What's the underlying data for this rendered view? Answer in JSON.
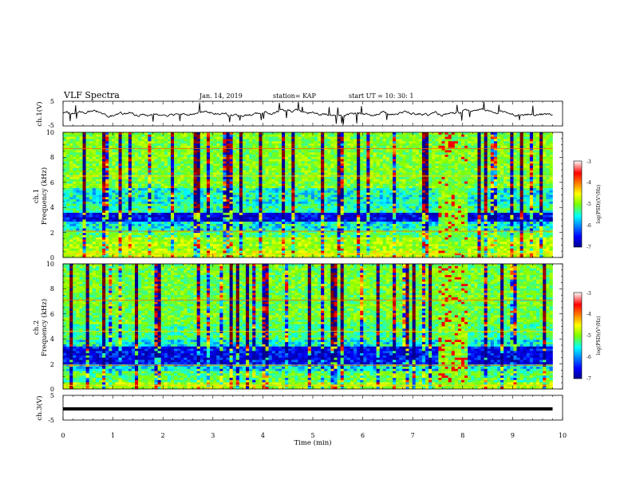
{
  "header": {
    "title": "VLF Spectra",
    "date": "Jan. 14, 2019",
    "station": "station= KAP",
    "start": "start  UT =   10: 30: 1"
  },
  "chart_data": [
    {
      "type": "line",
      "name": "ch1-waveform",
      "ylabel": "ch.1(V)",
      "ylim": [
        -5,
        5
      ],
      "yticks": [
        "5",
        "-5"
      ],
      "xlim": [
        0,
        10
      ]
    },
    {
      "type": "heatmap",
      "name": "ch1-spectrogram",
      "ylabel_line1": "ch.1",
      "ylabel_line2": "Frequency (kHz)",
      "xlim": [
        0,
        10
      ],
      "ylim": [
        0,
        10
      ],
      "yticks": [
        "0",
        "2",
        "4",
        "6",
        "8",
        "10"
      ],
      "data_end_min": 9.8,
      "colorbar": {
        "label": "log(PSD)(V²/Hz)",
        "range": [
          -7,
          -3
        ],
        "ticks": [
          "-3",
          "-4",
          "-5",
          "-6",
          "-7"
        ]
      }
    },
    {
      "type": "heatmap",
      "name": "ch2-spectrogram",
      "ylabel_line1": "ch.2",
      "ylabel_line2": "Frequency (kHz)",
      "xlim": [
        0,
        10
      ],
      "ylim": [
        0,
        10
      ],
      "yticks": [
        "0",
        "2",
        "4",
        "6",
        "8",
        "10"
      ],
      "data_end_min": 9.8,
      "colorbar": {
        "label": "log(PSD)(V²/Hz)",
        "range": [
          -7,
          -3
        ],
        "ticks": [
          "-3",
          "-4",
          "-5",
          "-6",
          "-7"
        ]
      }
    },
    {
      "type": "line",
      "name": "ch3-waveform",
      "ylabel": "ch.3(V)",
      "ylim": [
        -5,
        5
      ],
      "yticks": [
        "5",
        "-5"
      ],
      "xlim": [
        0,
        10
      ],
      "level": -0.5
    }
  ],
  "x_axis": {
    "label": "Time (min)",
    "ticks": [
      "0",
      "1",
      "2",
      "3",
      "4",
      "5",
      "6",
      "7",
      "8",
      "9",
      "10"
    ]
  },
  "colors": {
    "background": "#ffffff",
    "trace": "#000000",
    "colormap": [
      "#00008f",
      "#0000ff",
      "#00ffff",
      "#7fff00",
      "#ffff00",
      "#ff0000",
      "#800000"
    ]
  }
}
